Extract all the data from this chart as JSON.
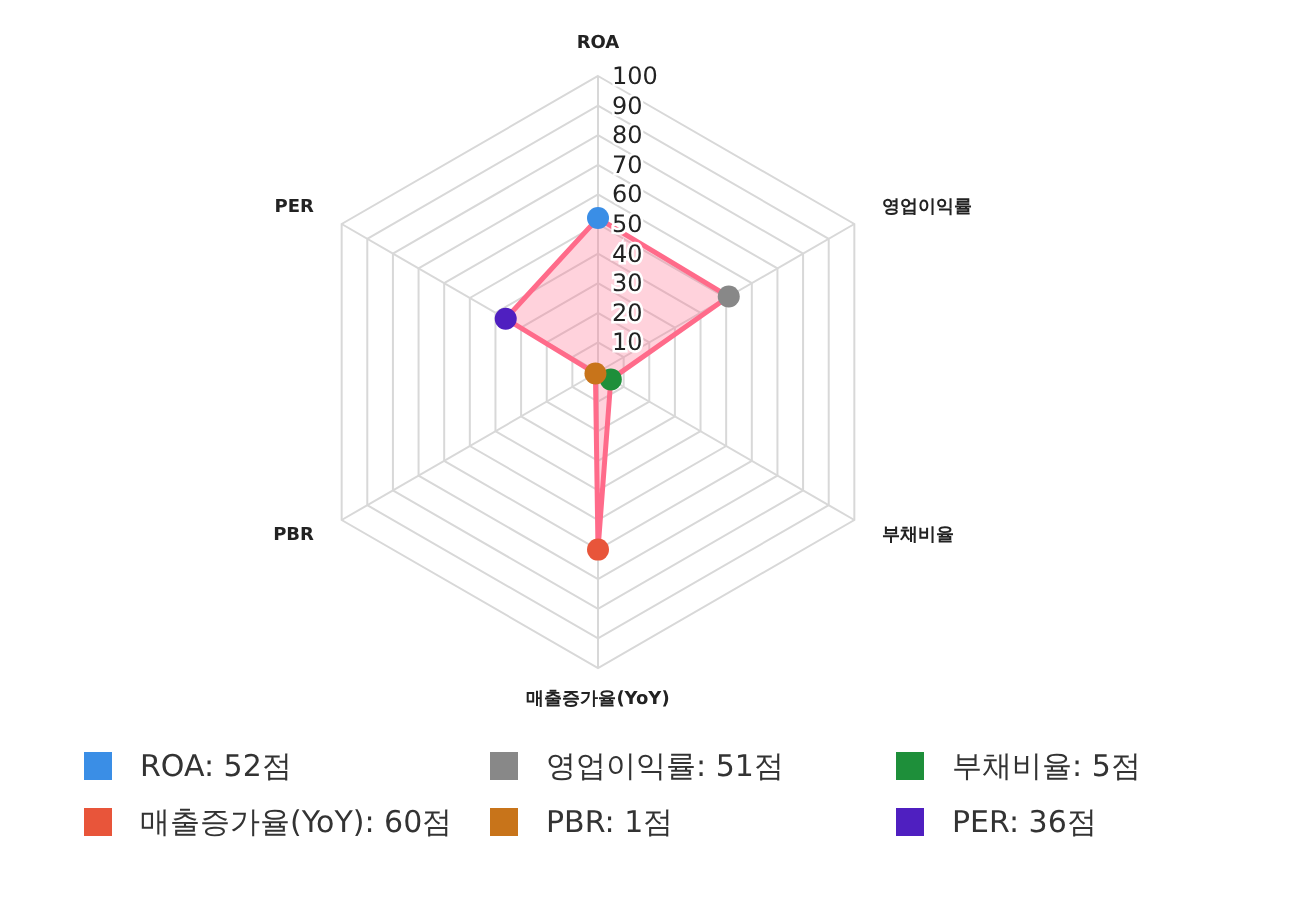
{
  "chart_data": {
    "type": "radar",
    "categories": [
      "ROA",
      "영업이익률",
      "부채비율",
      "매출증가율(YoY)",
      "PBR",
      "PER"
    ],
    "series": [
      {
        "color": "#ff6b8a",
        "colors": [
          "#3a8ee6",
          "#888888",
          "#1e8f3a",
          "#e8553a",
          "#c8741a",
          "#4f1fc0"
        ],
        "values": [
          52,
          51,
          5,
          60,
          1,
          36
        ]
      }
    ],
    "ylim": [
      0,
      100
    ],
    "yticks": [
      10,
      20,
      30,
      40,
      50,
      60,
      70,
      80,
      90,
      100
    ],
    "grid": true,
    "marker": "circle",
    "annotations": [
      "ROA: 52점",
      "영업이익률: 51점",
      "부채비율: 5점",
      "매출증가율(YoY): 60점",
      "PBR: 1점",
      "PER: 36점"
    ]
  }
}
